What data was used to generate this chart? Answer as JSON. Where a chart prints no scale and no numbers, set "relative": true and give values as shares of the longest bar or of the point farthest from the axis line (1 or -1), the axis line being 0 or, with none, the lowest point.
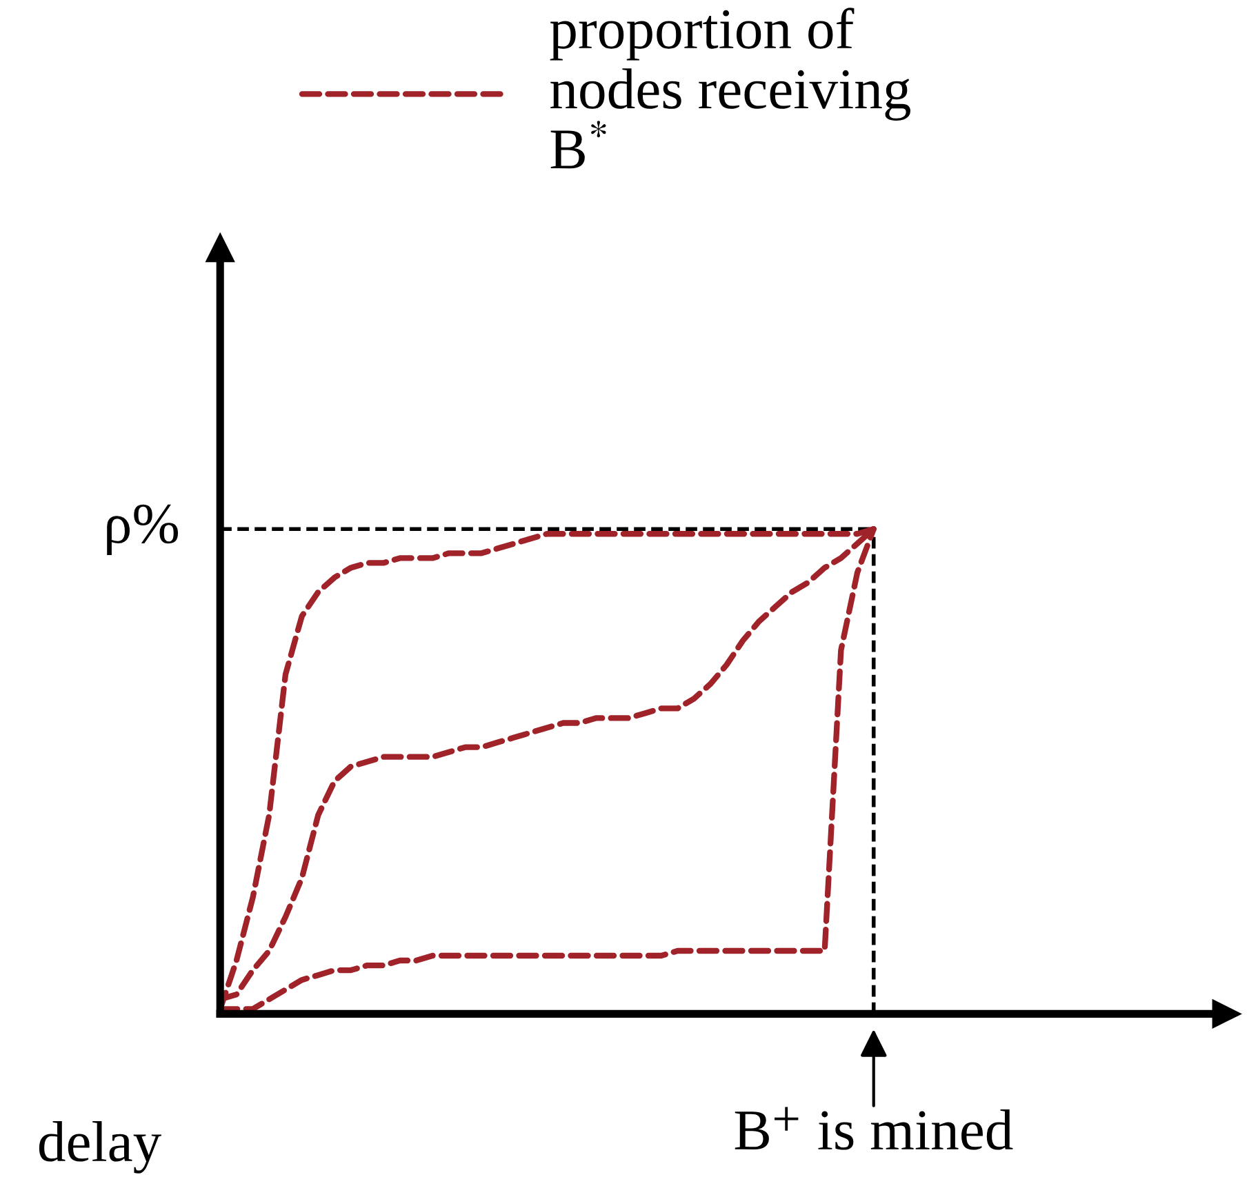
{
  "chart_data": {
    "type": "line",
    "relative": true,
    "xlabel": "delay",
    "legend": "top",
    "line_style": "dashed",
    "marker": "none",
    "categories": [
      null,
      null,
      null,
      null,
      null,
      null,
      null,
      null,
      null,
      null,
      null,
      null,
      null,
      null,
      null,
      null,
      null,
      null,
      null,
      null,
      null,
      null,
      null,
      null,
      null,
      null,
      null,
      null,
      null,
      null,
      null,
      null,
      null,
      null,
      null,
      null,
      null,
      null,
      null,
      null,
      null
    ],
    "series": [
      {
        "name": "proportion of\nnodes receiving\nB$^{*}$",
        "color": "#a0232a",
        "values": [
          0.01,
          0.11,
          0.24,
          0.41,
          0.7,
          0.82,
          0.87,
          0.9,
          0.92,
          0.93,
          0.93,
          0.94,
          0.94,
          0.94,
          0.95,
          0.95,
          0.95,
          0.96,
          0.97,
          0.98,
          0.99,
          0.99,
          0.99,
          0.99,
          0.99,
          0.99,
          0.99,
          0.99,
          0.99,
          0.99,
          0.99,
          0.99,
          0.99,
          0.99,
          0.99,
          0.99,
          0.99,
          0.99,
          0.99,
          0.99,
          1
        ]
      },
      {
        "color": "#a0232a",
        "values": [
          0.03,
          0.04,
          0.09,
          0.13,
          0.2,
          0.28,
          0.41,
          0.48,
          0.51,
          0.52,
          0.53,
          0.53,
          0.53,
          0.53,
          0.54,
          0.55,
          0.55,
          0.56,
          0.57,
          0.58,
          0.59,
          0.6,
          0.6,
          0.61,
          0.61,
          0.61,
          0.62,
          0.63,
          0.63,
          0.65,
          0.68,
          0.72,
          0.77,
          0.81,
          0.84,
          0.87,
          0.89,
          0.92,
          0.94,
          0.97,
          1
        ]
      },
      {
        "color": "#a0232a",
        "values": [
          0.01,
          0.01,
          0.01,
          0.03,
          0.05,
          0.07,
          0.08,
          0.09,
          0.09,
          0.1,
          0.1,
          0.11,
          0.11,
          0.12,
          0.12,
          0.12,
          0.12,
          0.12,
          0.12,
          0.12,
          0.12,
          0.12,
          0.12,
          0.12,
          0.12,
          0.12,
          0.12,
          0.12,
          0.13,
          0.13,
          0.13,
          0.13,
          0.13,
          0.13,
          0.13,
          0.13,
          0.13,
          0.13,
          0.75,
          0.91,
          1
        ]
      }
    ],
    "ref_lines": [
      {
        "axis": "y",
        "value": 1,
        "label": "ρ%",
        "color": "#000000",
        "line_style": "dashed"
      }
    ],
    "annotations": [
      "B$^{+}$ is mined"
    ]
  }
}
